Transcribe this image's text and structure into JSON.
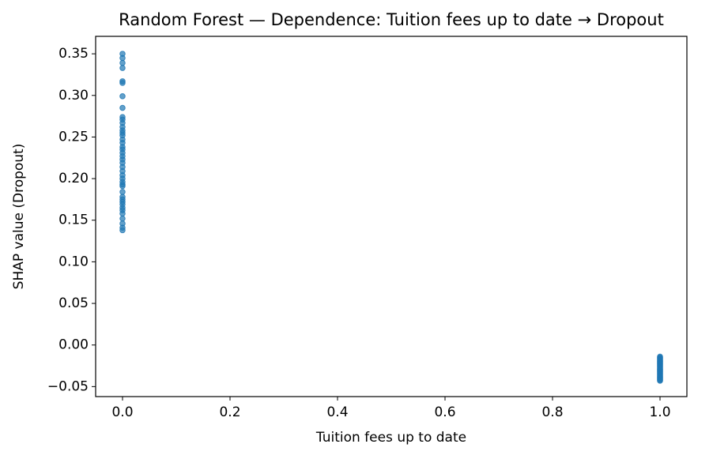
{
  "chart_data": {
    "type": "scatter",
    "title": "Random Forest — Dependence: Tuition fees up to date → Dropout",
    "xlabel": "Tuition fees up to date",
    "ylabel": "SHAP value (Dropout)",
    "color": "#1f77b4",
    "x": [
      0,
      0,
      0,
      0,
      0,
      0,
      0,
      0,
      0,
      0,
      0,
      0,
      0,
      0,
      0,
      0,
      0,
      0,
      0,
      0,
      0,
      0,
      0,
      0,
      0,
      0,
      0,
      0,
      0,
      0,
      0,
      0,
      0,
      0,
      0,
      0,
      0,
      0,
      0,
      0,
      0,
      0,
      1,
      1,
      1,
      1,
      1,
      1,
      1,
      1,
      1,
      1,
      1,
      1,
      1,
      1,
      1,
      1,
      1,
      1,
      1,
      1,
      1,
      1,
      1,
      1,
      1,
      1,
      1,
      1,
      1,
      1
    ],
    "values": [
      0.35,
      0.345,
      0.339,
      0.333,
      0.317,
      0.315,
      0.299,
      0.285,
      0.274,
      0.271,
      0.267,
      0.262,
      0.258,
      0.255,
      0.252,
      0.247,
      0.243,
      0.238,
      0.235,
      0.231,
      0.227,
      0.223,
      0.219,
      0.214,
      0.209,
      0.204,
      0.2,
      0.196,
      0.193,
      0.191,
      0.184,
      0.178,
      0.175,
      0.172,
      0.169,
      0.165,
      0.162,
      0.158,
      0.152,
      0.146,
      0.141,
      0.138,
      -0.014,
      -0.015,
      -0.016,
      -0.017,
      -0.018,
      -0.019,
      -0.02,
      -0.021,
      -0.022,
      -0.023,
      -0.024,
      -0.025,
      -0.026,
      -0.027,
      -0.028,
      -0.029,
      -0.03,
      -0.031,
      -0.032,
      -0.033,
      -0.034,
      -0.035,
      -0.036,
      -0.037,
      -0.038,
      -0.039,
      -0.04,
      -0.041,
      -0.042,
      -0.043
    ],
    "xlim": [
      -0.05,
      1.05
    ],
    "ylim": [
      -0.062,
      0.371
    ],
    "xticks": [
      {
        "value": 0,
        "label": "0.0"
      },
      {
        "value": 0.2,
        "label": "0.2"
      },
      {
        "value": 0.4,
        "label": "0.4"
      },
      {
        "value": 0.6,
        "label": "0.6"
      },
      {
        "value": 0.8,
        "label": "0.8"
      },
      {
        "value": 1,
        "label": "1.0"
      }
    ],
    "yticks": [
      {
        "value": -0.05,
        "label": "−0.05"
      },
      {
        "value": 0,
        "label": "0.00"
      },
      {
        "value": 0.05,
        "label": "0.05"
      },
      {
        "value": 0.1,
        "label": "0.10"
      },
      {
        "value": 0.15,
        "label": "0.15"
      },
      {
        "value": 0.2,
        "label": "0.20"
      },
      {
        "value": 0.25,
        "label": "0.25"
      },
      {
        "value": 0.3,
        "label": "0.30"
      },
      {
        "value": 0.35,
        "label": "0.35"
      }
    ],
    "grid": false
  }
}
